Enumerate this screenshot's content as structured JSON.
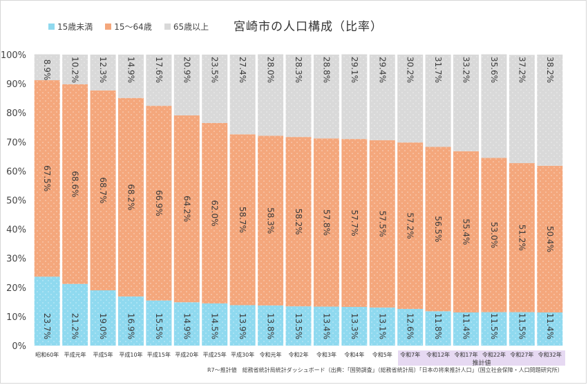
{
  "chart_data": {
    "type": "bar",
    "stacked": true,
    "title": "宮崎市の人口構成（比率）",
    "categories": [
      "昭和60年",
      "平成元年",
      "平成5年",
      "平成10年",
      "平成15年",
      "平成20年",
      "平成25年",
      "平成30年",
      "令和元年",
      "令和2年",
      "令和3年",
      "令和4年",
      "令和5年",
      "令和7年",
      "令和12年",
      "令和17年",
      "令和22年",
      "令和27年",
      "令和32年"
    ],
    "series": [
      {
        "name": "15歳未満",
        "color": "#8fd9ef",
        "values": [
          23.7,
          21.2,
          19.0,
          16.9,
          15.5,
          14.9,
          14.5,
          13.9,
          13.8,
          13.5,
          13.4,
          13.3,
          13.1,
          12.6,
          11.8,
          11.4,
          11.5,
          11.5,
          11.4
        ]
      },
      {
        "name": "15～64歳",
        "color": "#f4a77c",
        "values": [
          67.5,
          68.6,
          68.7,
          68.2,
          66.9,
          64.2,
          62.0,
          58.7,
          58.3,
          58.2,
          57.8,
          57.7,
          57.5,
          57.2,
          56.5,
          55.4,
          53.0,
          51.2,
          50.4
        ]
      },
      {
        "name": "65歳以上",
        "color": "#d9d9d9",
        "values": [
          8.9,
          10.2,
          12.3,
          14.9,
          17.6,
          20.9,
          23.5,
          27.4,
          28.0,
          28.3,
          28.8,
          29.1,
          29.4,
          30.2,
          31.7,
          33.2,
          35.6,
          37.2,
          38.2
        ]
      }
    ],
    "ylim": [
      0,
      100
    ],
    "yticks": [
      "0%",
      "10%",
      "20%",
      "30%",
      "40%",
      "50%",
      "60%",
      "70%",
      "80%",
      "90%",
      "100%"
    ],
    "legend": "top-left",
    "grid": false,
    "estimate_label": "推計値",
    "estimate_start_index": 13,
    "source": "R7～推計値　総務省統計局統計ダッシュボード（出典：「国勢調査」（総務省統計局）「日本の将来推計人口」（国立社会保障・人口問題研究所）"
  }
}
